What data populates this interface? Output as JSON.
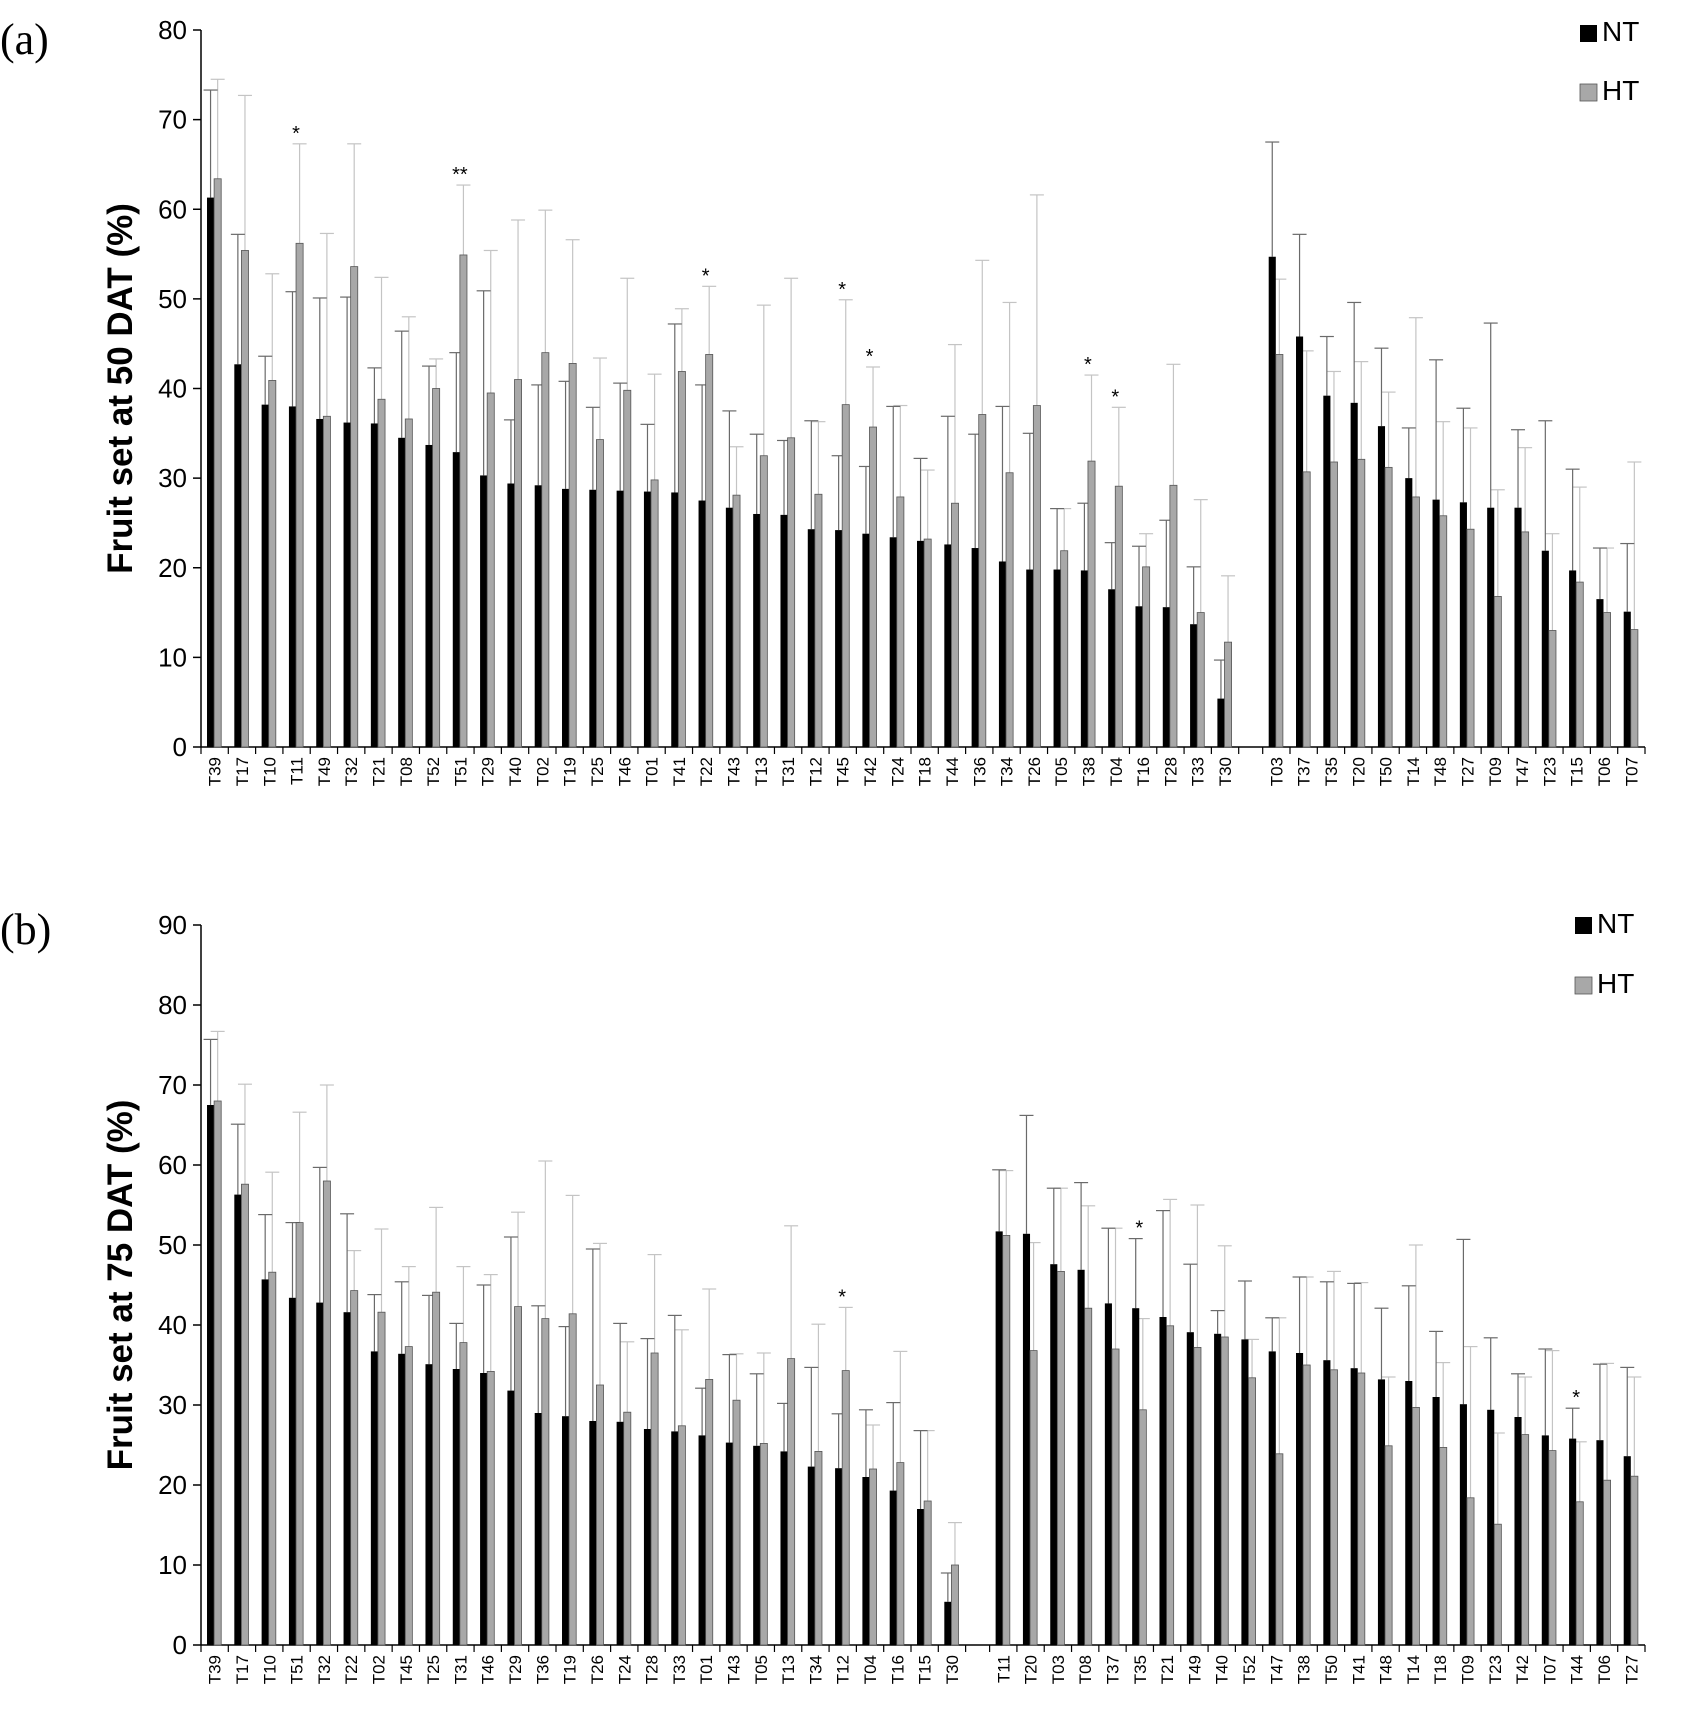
{
  "chart_data": [
    {
      "panel_label": "(a)",
      "type": "bar",
      "ylabel": "Fruit set at 50 DAT (%)",
      "ylim": [
        0,
        80
      ],
      "yticks": [
        "0",
        "10",
        "20",
        "30",
        "40",
        "50",
        "60",
        "70",
        "80"
      ],
      "legend_placement": "top-right",
      "group_gap_after": "T30",
      "categories": [
        "T39",
        "T17",
        "T10",
        "T11",
        "T49",
        "T32",
        "T21",
        "T08",
        "T52",
        "T51",
        "T29",
        "T40",
        "T02",
        "T19",
        "T25",
        "T46",
        "T01",
        "T41",
        "T22",
        "T43",
        "T13",
        "T31",
        "T12",
        "T45",
        "T42",
        "T24",
        "T18",
        "T44",
        "T36",
        "T34",
        "T26",
        "T05",
        "T38",
        "T04",
        "T16",
        "T28",
        "T33",
        "T30",
        "T03",
        "T37",
        "T35",
        "T20",
        "T50",
        "T14",
        "T48",
        "T27",
        "T09",
        "T47",
        "T23",
        "T15",
        "T06",
        "T07"
      ],
      "series": [
        {
          "name": "NT",
          "color": "#000000",
          "values": [
            61.3,
            42.7,
            38.2,
            38.0,
            36.6,
            36.2,
            36.1,
            34.5,
            33.7,
            32.9,
            30.3,
            29.4,
            29.2,
            28.8,
            28.7,
            28.6,
            28.5,
            28.4,
            27.5,
            26.7,
            26.0,
            25.9,
            24.3,
            24.2,
            23.8,
            23.4,
            23.0,
            22.6,
            22.2,
            20.7,
            19.8,
            19.8,
            19.7,
            17.6,
            15.7,
            15.6,
            13.7,
            5.4,
            54.7,
            45.8,
            39.2,
            38.4,
            35.8,
            30.0,
            27.6,
            27.3,
            26.7,
            26.7,
            21.9,
            19.7,
            16.5,
            15.1
          ],
          "errors": [
            12.0,
            14.5,
            5.4,
            12.8,
            13.5,
            14.0,
            6.2,
            11.9,
            8.8,
            11.1,
            20.6,
            7.1,
            11.2,
            12.0,
            9.2,
            12.0,
            7.5,
            18.8,
            12.9,
            10.8,
            8.9,
            8.3,
            12.1,
            8.3,
            7.5,
            14.6,
            9.2,
            14.3,
            12.7,
            17.3,
            15.2,
            6.8,
            7.5,
            5.2,
            6.7,
            9.7,
            6.4,
            4.3,
            12.8,
            11.4,
            6.6,
            11.2,
            8.7,
            5.6,
            15.6,
            10.5,
            20.6,
            8.7,
            14.5,
            11.3,
            5.7,
            7.6
          ]
        },
        {
          "name": "HT",
          "color": "#a8a8a8",
          "values": [
            63.4,
            55.4,
            40.9,
            56.2,
            36.9,
            53.6,
            38.8,
            36.6,
            40.0,
            54.9,
            39.5,
            41.0,
            44.0,
            42.8,
            34.3,
            39.8,
            29.8,
            41.9,
            43.8,
            28.1,
            32.5,
            34.5,
            28.2,
            38.2,
            35.7,
            27.9,
            23.2,
            27.2,
            37.1,
            30.6,
            38.1,
            21.9,
            31.9,
            29.1,
            20.1,
            29.2,
            15.0,
            11.7,
            43.8,
            30.7,
            31.8,
            32.1,
            31.2,
            27.9,
            25.8,
            24.3,
            16.8,
            24.0,
            13.0,
            18.4,
            15.0,
            13.1
          ],
          "errors": [
            11.1,
            17.3,
            11.9,
            11.1,
            20.4,
            13.7,
            13.6,
            11.4,
            3.3,
            7.8,
            15.9,
            17.8,
            15.9,
            13.8,
            9.1,
            12.5,
            11.8,
            7.0,
            7.6,
            5.4,
            16.8,
            17.8,
            8.1,
            11.7,
            6.7,
            10.2,
            7.7,
            17.7,
            17.2,
            19.0,
            23.5,
            4.7,
            9.6,
            8.8,
            3.7,
            13.5,
            12.6,
            7.4,
            8.4,
            13.5,
            10.1,
            10.9,
            8.4,
            20.0,
            10.5,
            11.3,
            11.9,
            9.4,
            10.8,
            10.6,
            7.2,
            18.7
          ]
        }
      ],
      "significance": [
        {
          "category": "T11",
          "label": "*"
        },
        {
          "category": "T51",
          "label": "**"
        },
        {
          "category": "T22",
          "label": "*"
        },
        {
          "category": "T45",
          "label": "*"
        },
        {
          "category": "T42",
          "label": "*"
        },
        {
          "category": "T38",
          "label": "*"
        },
        {
          "category": "T04",
          "label": "*"
        }
      ]
    },
    {
      "panel_label": "(b)",
      "type": "bar",
      "ylabel": "Fruit set at 75 DAT (%)",
      "ylim": [
        0,
        90
      ],
      "yticks": [
        "0",
        "10",
        "20",
        "30",
        "40",
        "50",
        "60",
        "70",
        "80",
        "90"
      ],
      "legend_placement": "top-right",
      "group_gap_after": "T30",
      "categories": [
        "T39",
        "T17",
        "T10",
        "T51",
        "T32",
        "T22",
        "T02",
        "T45",
        "T25",
        "T31",
        "T46",
        "T29",
        "T36",
        "T19",
        "T26",
        "T24",
        "T28",
        "T33",
        "T01",
        "T43",
        "T05",
        "T13",
        "T34",
        "T12",
        "T04",
        "T16",
        "T15",
        "T30",
        "T11",
        "T20",
        "T03",
        "T08",
        "T37",
        "T35",
        "T21",
        "T49",
        "T40",
        "T52",
        "T47",
        "T38",
        "T50",
        "T41",
        "T48",
        "T14",
        "T18",
        "T09",
        "T23",
        "T42",
        "T07",
        "T44",
        "T06",
        "T27"
      ],
      "series": [
        {
          "name": "NT",
          "color": "#000000",
          "values": [
            67.5,
            56.3,
            45.7,
            43.4,
            42.8,
            41.6,
            36.7,
            36.4,
            35.1,
            34.5,
            34.0,
            31.8,
            29.0,
            28.6,
            28.0,
            27.9,
            27.0,
            26.7,
            26.2,
            25.3,
            24.9,
            24.2,
            22.3,
            22.1,
            21.0,
            19.3,
            17.0,
            5.4,
            51.7,
            51.4,
            47.6,
            46.9,
            42.7,
            42.1,
            41.0,
            39.1,
            38.9,
            38.2,
            36.7,
            36.5,
            35.6,
            34.6,
            33.2,
            33.0,
            31.0,
            30.1,
            29.4,
            28.5,
            26.2,
            25.8,
            25.6,
            23.6
          ],
          "errors": [
            8.2,
            8.8,
            8.1,
            9.4,
            16.9,
            12.3,
            7.1,
            9.0,
            8.6,
            5.7,
            11.0,
            19.2,
            13.4,
            11.2,
            21.5,
            12.3,
            11.3,
            14.5,
            5.9,
            11.0,
            9.0,
            6.0,
            12.4,
            6.8,
            8.4,
            11.0,
            9.8,
            3.6,
            7.7,
            14.8,
            9.5,
            10.9,
            9.4,
            8.7,
            13.3,
            8.5,
            2.9,
            7.3,
            4.2,
            9.5,
            9.8,
            10.6,
            8.9,
            11.9,
            8.2,
            20.6,
            9.0,
            5.4,
            10.8,
            3.8,
            9.5,
            11.1
          ]
        },
        {
          "name": "HT",
          "color": "#a8a8a8",
          "values": [
            68.0,
            57.6,
            46.6,
            52.8,
            58.0,
            44.3,
            41.6,
            37.3,
            44.1,
            37.8,
            34.2,
            42.3,
            40.8,
            41.4,
            32.5,
            29.1,
            36.5,
            27.4,
            33.2,
            30.6,
            25.2,
            35.8,
            24.2,
            34.3,
            22.0,
            22.8,
            18.0,
            10.0,
            51.2,
            36.8,
            46.7,
            42.1,
            37.0,
            29.4,
            39.9,
            37.2,
            38.5,
            33.4,
            23.9,
            35.0,
            34.4,
            34.0,
            24.9,
            29.7,
            24.7,
            18.4,
            15.1,
            26.3,
            24.3,
            17.9,
            20.6,
            21.1
          ],
          "errors": [
            8.7,
            12.5,
            12.5,
            13.8,
            12.0,
            5.0,
            10.4,
            10.0,
            10.6,
            9.5,
            12.1,
            11.8,
            19.7,
            14.8,
            17.7,
            8.8,
            12.3,
            12.0,
            11.3,
            5.8,
            11.3,
            16.6,
            15.9,
            7.9,
            5.5,
            13.9,
            8.8,
            5.3,
            8.1,
            13.5,
            10.4,
            12.8,
            15.1,
            11.4,
            15.8,
            17.8,
            11.4,
            4.8,
            17.0,
            11.0,
            12.3,
            11.3,
            8.6,
            20.3,
            10.6,
            18.9,
            11.4,
            7.2,
            12.5,
            7.5,
            14.6,
            12.4
          ]
        }
      ],
      "significance": [
        {
          "category": "T35",
          "label": "*"
        },
        {
          "category": "T12",
          "label": "*"
        },
        {
          "category": "T44",
          "label": "*"
        }
      ]
    }
  ]
}
